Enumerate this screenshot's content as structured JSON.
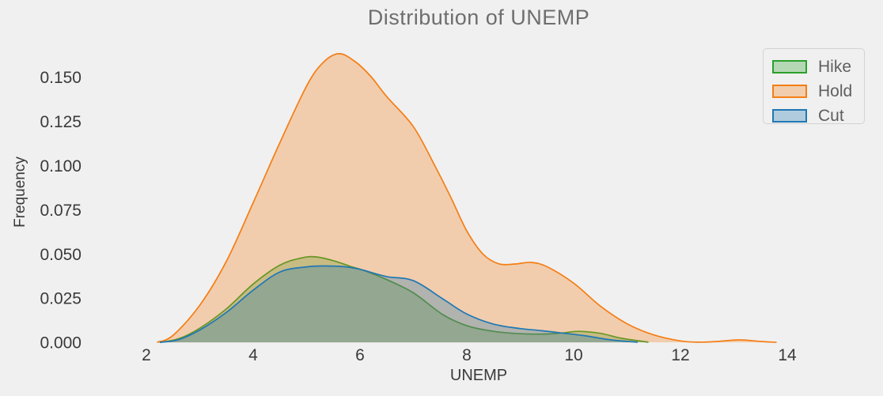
{
  "page": {
    "background": "#f0f0f0"
  },
  "chart_data": {
    "type": "area",
    "subtype": "kde-distribution",
    "title": "Distribution of UNEMP",
    "xlabel": "UNEMP",
    "ylabel": "Frequency",
    "grid": false,
    "legend_position": "upper right",
    "xlim": [
      1.333,
      15.111
    ],
    "ylim": [
      -0.00755,
      0.16906
    ],
    "xticks": {
      "values": [
        2,
        4,
        6,
        8,
        10,
        12,
        14
      ],
      "labels": [
        "2",
        "4",
        "6",
        "8",
        "10",
        "12",
        "14"
      ]
    },
    "yticks": {
      "values": [
        0,
        0.025,
        0.05,
        0.075,
        0.1,
        0.125,
        0.15
      ],
      "labels": [
        "0.000",
        "0.025",
        "0.050",
        "0.075",
        "0.100",
        "0.125",
        "0.150"
      ]
    },
    "series": [
      {
        "name": "Hike",
        "color": "#2ca02c",
        "fill_opacity": 0.3,
        "x": [
          2.25,
          2.6,
          3.0,
          3.5,
          4.0,
          4.5,
          4.9,
          5.16,
          5.5,
          5.8,
          6.1,
          6.5,
          7.0,
          7.55,
          8.0,
          8.5,
          9.0,
          9.45,
          9.78,
          10.1,
          10.5,
          10.9,
          11.4
        ],
        "y": [
          0,
          0.002,
          0.008,
          0.019,
          0.033,
          0.0437,
          0.0477,
          0.0484,
          0.0462,
          0.0432,
          0.0404,
          0.0355,
          0.028,
          0.0157,
          0.0094,
          0.0062,
          0.0049,
          0.0047,
          0.0053,
          0.0062,
          0.0051,
          0.0023,
          0.0001
        ]
      },
      {
        "name": "Hold",
        "color": "#f57e14",
        "fill_opacity": 0.3,
        "x": [
          2.2,
          2.5,
          3.0,
          3.5,
          4.0,
          4.5,
          5.0,
          5.3,
          5.6,
          5.9,
          6.2,
          6.5,
          7.0,
          7.4,
          7.7,
          8.0,
          8.3,
          8.6,
          8.9,
          9.2,
          9.5,
          10.0,
          10.5,
          11.0,
          11.5,
          12.0,
          12.35,
          12.7,
          13.1,
          13.5,
          13.8
        ],
        "y": [
          0,
          0.004,
          0.021,
          0.046,
          0.079,
          0.113,
          0.145,
          0.158,
          0.1633,
          0.159,
          0.1505,
          0.139,
          0.122,
          0.1,
          0.082,
          0.063,
          0.05,
          0.0444,
          0.0443,
          0.0452,
          0.0428,
          0.0335,
          0.0205,
          0.0105,
          0.0042,
          0.0008,
          0.0001,
          0.0005,
          0.0014,
          0.0005,
          0
        ]
      },
      {
        "name": "Cut",
        "color": "#1f77b4",
        "fill_opacity": 0.3,
        "x": [
          2.25,
          2.6,
          3.0,
          3.5,
          4.0,
          4.5,
          5.0,
          5.35,
          5.7,
          6.0,
          6.5,
          7.0,
          7.55,
          8.0,
          8.5,
          9.0,
          9.4,
          9.78,
          10.2,
          10.7,
          11.2
        ],
        "y": [
          0,
          0.0015,
          0.007,
          0.017,
          0.0295,
          0.0398,
          0.0427,
          0.0432,
          0.0428,
          0.0413,
          0.0372,
          0.0349,
          0.0246,
          0.016,
          0.0103,
          0.0078,
          0.0066,
          0.0053,
          0.0038,
          0.0014,
          0.0001
        ]
      }
    ]
  }
}
